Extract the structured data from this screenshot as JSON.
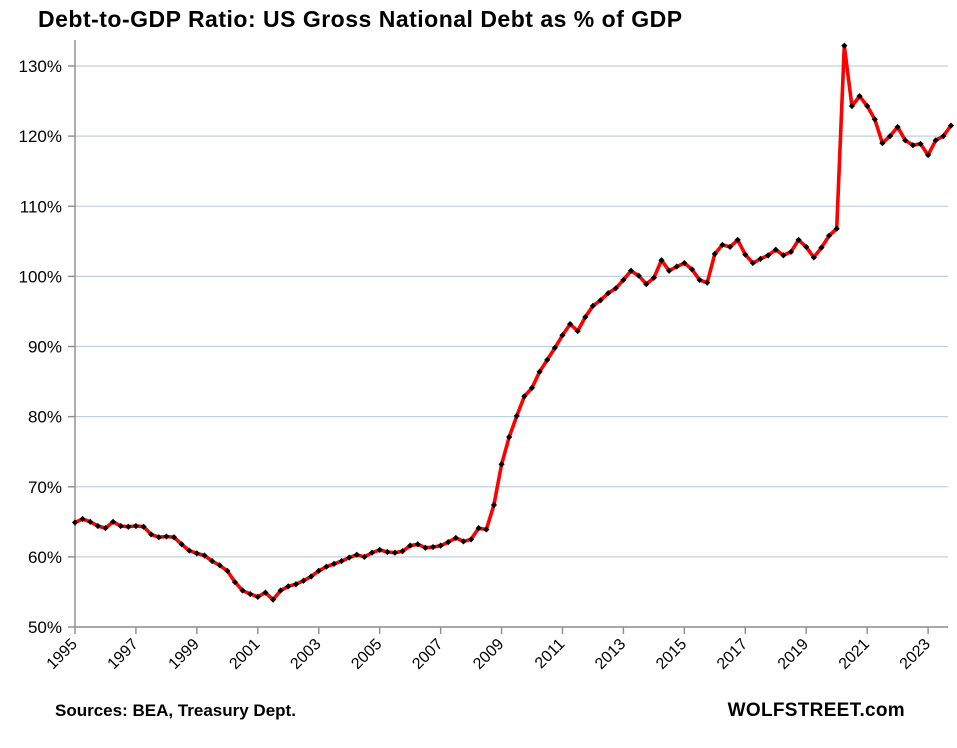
{
  "header": {
    "title": "Debt-to-GDP Ratio: US Gross National Debt as % of GDP"
  },
  "footer": {
    "sources": "Sources: BEA, Treasury Dept.",
    "watermark": "WOLFSTREET.com"
  },
  "style": {
    "line_color": "#ff0000",
    "marker_color": "#000000",
    "gridline_color": "#bfd0e6",
    "axis_color": "#8c8c8c",
    "text_color": "#000000",
    "background": "#ffffff"
  },
  "chart_data": {
    "type": "line",
    "title": "Debt-to-GDP Ratio: US Gross National Debt as % of GDP",
    "xlabel": "",
    "ylabel": "",
    "x_start": "1995 Q1",
    "x_end": "2023 Q4",
    "frequency": "quarterly",
    "grid": "horizontal",
    "legend": "none",
    "y_axis": {
      "min": 50,
      "max": 130,
      "step": 10,
      "unit": "%"
    },
    "y_tick_labels": [
      "130%",
      "120%",
      "110%",
      "100%",
      "90%",
      "80%",
      "70%",
      "60%",
      "50%"
    ],
    "x_tick_labels": [
      "1995",
      "1997",
      "1999",
      "2001",
      "2003",
      "2005",
      "2007",
      "2009",
      "2011",
      "2013",
      "2015",
      "2017",
      "2019",
      "2021",
      "2023"
    ],
    "series": [
      {
        "name": "US Gross National Debt as % of GDP",
        "color": "#ff0000",
        "marker": "diamond",
        "marker_color": "#000000",
        "values": [
          64.9,
          65.4,
          65.0,
          64.4,
          64.1,
          65.0,
          64.4,
          64.3,
          64.4,
          64.3,
          63.2,
          62.8,
          62.9,
          62.8,
          61.8,
          60.9,
          60.5,
          60.2,
          59.4,
          58.8,
          58.0,
          56.4,
          55.2,
          54.7,
          54.3,
          54.9,
          53.9,
          55.2,
          55.8,
          56.1,
          56.6,
          57.2,
          58.0,
          58.6,
          59.0,
          59.4,
          59.9,
          60.3,
          60.0,
          60.6,
          61.0,
          60.7,
          60.6,
          60.8,
          61.6,
          61.8,
          61.3,
          61.4,
          61.6,
          62.1,
          62.7,
          62.2,
          62.5,
          64.1,
          63.9,
          67.4,
          73.2,
          77.1,
          80.1,
          82.9,
          84.1,
          86.4,
          88.1,
          89.8,
          91.6,
          93.2,
          92.2,
          94.2,
          95.8,
          96.6,
          97.6,
          98.3,
          99.5,
          100.8,
          100.1,
          98.9,
          99.8,
          102.3,
          100.8,
          101.4,
          101.9,
          101.0,
          99.5,
          99.1,
          103.2,
          104.5,
          104.2,
          105.2,
          103.1,
          101.9,
          102.5,
          103.0,
          103.8,
          103.0,
          103.5,
          105.2,
          104.2,
          102.7,
          104.1,
          105.8,
          106.8,
          132.9,
          124.3,
          125.7,
          124.3,
          122.4,
          119.0,
          120.0,
          121.3,
          119.4,
          118.7,
          118.9,
          117.3,
          119.4,
          120.0,
          121.5
        ]
      }
    ]
  }
}
